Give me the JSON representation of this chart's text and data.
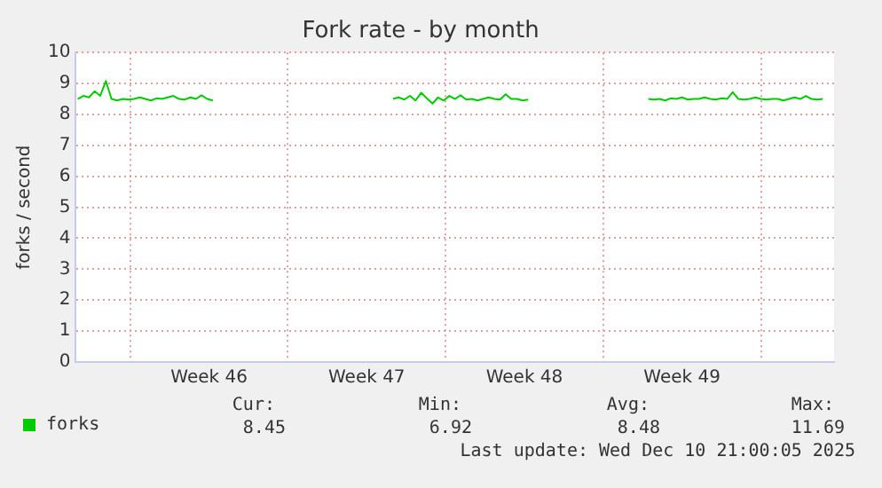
{
  "chart_data": {
    "type": "line",
    "title": "Fork rate - by month",
    "ylabel": "forks / second",
    "x": [
      "2025-11-07T16:00",
      "2025-11-07T22:00",
      "2025-11-08T04:00",
      "2025-11-08T10:00",
      "2025-11-08T16:00",
      "2025-11-08T22:00",
      "2025-11-09T04:00",
      "2025-11-09T10:00",
      "2025-11-09T16:00",
      "2025-11-09T22:00",
      "2025-11-10T04:00",
      "2025-11-10T10:00",
      "2025-11-10T16:00",
      "2025-11-10T22:00",
      "2025-11-11T04:00",
      "2025-11-11T10:00",
      "2025-11-11T16:00",
      "2025-11-11T22:00",
      "2025-11-12T04:00",
      "2025-11-12T10:00",
      "2025-11-12T16:00",
      "2025-11-12T22:00",
      "2025-11-13T04:00",
      "2025-11-13T10:00",
      "2025-11-13T16:00",
      "2025-11-17T12:00",
      "2025-11-21T16:00",
      "2025-11-21T22:00",
      "2025-11-22T04:00",
      "2025-11-22T10:00",
      "2025-11-22T16:00",
      "2025-11-22T22:00",
      "2025-11-23T04:00",
      "2025-11-23T10:00",
      "2025-11-23T16:00",
      "2025-11-23T22:00",
      "2025-11-24T04:00",
      "2025-11-24T10:00",
      "2025-11-24T16:00",
      "2025-11-24T22:00",
      "2025-11-25T04:00",
      "2025-11-25T10:00",
      "2025-11-25T16:00",
      "2025-11-25T22:00",
      "2025-11-26T04:00",
      "2025-11-26T10:00",
      "2025-11-26T16:00",
      "2025-11-26T22:00",
      "2025-11-27T04:00",
      "2025-11-27T10:00",
      "2025-11-27T16:00",
      "2025-11-30T12:00",
      "2025-12-03T00:00",
      "2025-12-03T06:00",
      "2025-12-03T12:00",
      "2025-12-03T18:00",
      "2025-12-04T00:00",
      "2025-12-04T06:00",
      "2025-12-04T12:00",
      "2025-12-04T18:00",
      "2025-12-05T00:00",
      "2025-12-05T06:00",
      "2025-12-05T12:00",
      "2025-12-05T18:00",
      "2025-12-06T00:00",
      "2025-12-06T06:00",
      "2025-12-06T12:00",
      "2025-12-06T18:00",
      "2025-12-07T00:00",
      "2025-12-07T06:00",
      "2025-12-07T12:00",
      "2025-12-07T18:00",
      "2025-12-08T00:00",
      "2025-12-08T06:00",
      "2025-12-08T12:00",
      "2025-12-08T18:00",
      "2025-12-09T00:00",
      "2025-12-09T06:00",
      "2025-12-09T12:00",
      "2025-12-09T18:00",
      "2025-12-10T00:00",
      "2025-12-10T06:00",
      "2025-12-10T12:00",
      "2025-12-10T18:00"
    ],
    "series": [
      {
        "name": "forks",
        "color": "#00cc00",
        "values": [
          8.5,
          8.6,
          8.55,
          8.75,
          8.6,
          9.08,
          8.5,
          8.45,
          8.5,
          8.48,
          8.5,
          8.55,
          8.5,
          8.45,
          8.52,
          8.5,
          8.55,
          8.6,
          8.5,
          8.48,
          8.55,
          8.5,
          8.62,
          8.5,
          8.45,
          null,
          8.5,
          8.55,
          8.48,
          8.6,
          8.45,
          8.7,
          8.52,
          8.35,
          8.55,
          8.45,
          8.6,
          8.5,
          8.62,
          8.48,
          8.5,
          8.45,
          8.5,
          8.55,
          8.5,
          8.48,
          8.65,
          8.5,
          8.5,
          8.45,
          8.48,
          null,
          8.5,
          8.48,
          8.5,
          8.45,
          8.52,
          8.5,
          8.55,
          8.48,
          8.5,
          8.5,
          8.55,
          8.5,
          8.48,
          8.52,
          8.5,
          8.72,
          8.5,
          8.48,
          8.5,
          8.55,
          8.5,
          8.48,
          8.5,
          8.5,
          8.45,
          8.5,
          8.55,
          8.5,
          8.6,
          8.5,
          8.48,
          8.5
        ]
      }
    ],
    "xlim": [
      "2025-11-07T14:00",
      "2025-12-11T06:00"
    ],
    "xticks": [
      {
        "value": "2025-11-10T00:00",
        "label": null
      },
      {
        "value": "2025-11-13T12:00",
        "label": "Week 46"
      },
      {
        "value": "2025-11-17T00:00",
        "label": null
      },
      {
        "value": "2025-11-20T12:00",
        "label": "Week 47"
      },
      {
        "value": "2025-11-24T00:00",
        "label": null
      },
      {
        "value": "2025-11-27T12:00",
        "label": "Week 48"
      },
      {
        "value": "2025-12-01T00:00",
        "label": null
      },
      {
        "value": "2025-12-04T12:00",
        "label": "Week 49"
      },
      {
        "value": "2025-12-08T00:00",
        "label": null
      }
    ],
    "ylim": [
      0,
      10
    ],
    "yticks": [
      0,
      1,
      2,
      3,
      4,
      5,
      6,
      7,
      8,
      9,
      10
    ],
    "grid": true,
    "legend": "bottom left",
    "marker": "none",
    "line_style": "solid",
    "annotations": [
      "Cur:",
      "Min:",
      "Avg:",
      "Max:",
      "8.45",
      "6.92",
      "8.48",
      "11.69",
      "Last update: Wed Dec 10 21:00:05 2025"
    ]
  }
}
